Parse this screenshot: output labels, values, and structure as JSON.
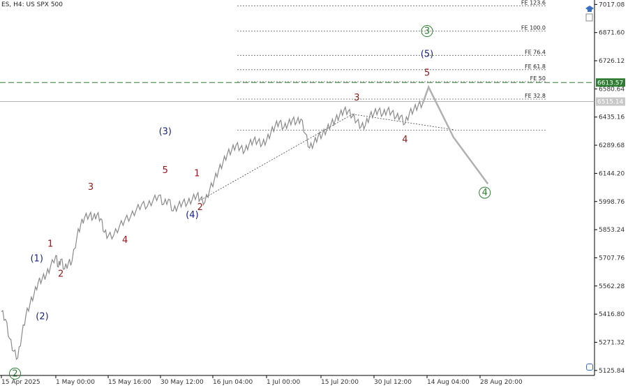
{
  "symbol": "ES, H4:  US SPX 500",
  "colors": {
    "price_line": "#8a8a8a",
    "projection": "#b0b0b0",
    "current_price_bg": "#c8c8c8",
    "resistance_line": "#2e7d32",
    "resistance_bg": "#2e7d32",
    "minor_wave": "#8b1a1a",
    "intermediate_wave": "#1a237e",
    "primary_wave": "#2e7d32",
    "fib_line": "#666666"
  },
  "chart_data": {
    "type": "line",
    "y_axis_ticks": [
      "7017.08",
      "6871.60",
      "6726.12",
      "6580.64",
      "6435.16",
      "6289.68",
      "6144.20",
      "5998.76",
      "5853.24",
      "5707.76",
      "5562.28",
      "5416.80",
      "5271.32",
      "5125.84"
    ],
    "x_axis_ticks": [
      "15 Apr 2025",
      "1 May 00:00",
      "15 May 16:00",
      "30 May 12:00",
      "16 Jun 04:00",
      "1 Jul 00:00",
      "15 Jul 20:00",
      "30 Jul 12:00",
      "14 Aug 04:00",
      "28 Aug 20:00"
    ],
    "ylim": [
      5100,
      7040
    ],
    "price_series": [
      [
        0,
        5430
      ],
      [
        3,
        5390
      ],
      [
        6,
        5290
      ],
      [
        9,
        5225
      ],
      [
        12,
        5190
      ],
      [
        15,
        5310
      ],
      [
        18,
        5410
      ],
      [
        21,
        5470
      ],
      [
        24,
        5520
      ],
      [
        27,
        5580
      ],
      [
        30,
        5600
      ],
      [
        33,
        5620
      ],
      [
        36,
        5660
      ],
      [
        40,
        5720
      ],
      [
        42,
        5660
      ],
      [
        44,
        5700
      ],
      [
        47,
        5650
      ],
      [
        50,
        5680
      ],
      [
        53,
        5690
      ],
      [
        57,
        5820
      ],
      [
        60,
        5880
      ],
      [
        63,
        5915
      ],
      [
        67,
        5930
      ],
      [
        70,
        5915
      ],
      [
        73,
        5930
      ],
      [
        76,
        5910
      ],
      [
        79,
        5840
      ],
      [
        82,
        5820
      ],
      [
        85,
        5825
      ],
      [
        88,
        5870
      ],
      [
        91,
        5905
      ],
      [
        94,
        5920
      ],
      [
        97,
        5955
      ],
      [
        100,
        5985
      ],
      [
        103,
        5975
      ],
      [
        106,
        6005
      ],
      [
        109,
        6030
      ],
      [
        112,
        5985
      ],
      [
        115,
        6010
      ],
      [
        118,
        5950
      ],
      [
        121,
        5975
      ],
      [
        124,
        5995
      ],
      [
        127,
        5990
      ],
      [
        130,
        6010
      ],
      [
        133,
        6035
      ],
      [
        135,
        6010
      ],
      [
        138,
        5995
      ],
      [
        141,
        6060
      ],
      [
        144,
        6110
      ],
      [
        147,
        6160
      ],
      [
        150,
        6200
      ],
      [
        153,
        6245
      ],
      [
        156,
        6265
      ],
      [
        159,
        6290
      ],
      [
        162,
        6275
      ],
      [
        165,
        6260
      ],
      [
        168,
        6295
      ],
      [
        171,
        6315
      ],
      [
        174,
        6310
      ],
      [
        177,
        6295
      ],
      [
        180,
        6315
      ],
      [
        183,
        6355
      ],
      [
        186,
        6390
      ],
      [
        189,
        6410
      ],
      [
        192,
        6380
      ],
      [
        195,
        6400
      ],
      [
        198,
        6420
      ],
      [
        201,
        6410
      ],
      [
        204,
        6425
      ],
      [
        207,
        6350
      ],
      [
        210,
        6275
      ],
      [
        213,
        6300
      ],
      [
        216,
        6335
      ],
      [
        219,
        6345
      ],
      [
        222,
        6370
      ],
      [
        225,
        6400
      ],
      [
        228,
        6420
      ],
      [
        231,
        6445
      ],
      [
        234,
        6470
      ],
      [
        237,
        6465
      ],
      [
        240,
        6440
      ],
      [
        243,
        6415
      ],
      [
        246,
        6385
      ],
      [
        249,
        6395
      ],
      [
        252,
        6440
      ],
      [
        255,
        6455
      ],
      [
        258,
        6470
      ],
      [
        261,
        6450
      ],
      [
        264,
        6470
      ],
      [
        267,
        6460
      ],
      [
        270,
        6435
      ],
      [
        273,
        6440
      ],
      [
        276,
        6400
      ],
      [
        279,
        6455
      ],
      [
        282,
        6475
      ],
      [
        285,
        6495
      ],
      [
        288,
        6505
      ]
    ],
    "projection_path": [
      [
        288,
        6505
      ],
      [
        292,
        6590
      ],
      [
        308,
        6330
      ],
      [
        330,
        6090
      ]
    ],
    "current_price": "6515.14",
    "resistance_price": "6613.57",
    "fib_levels": [
      {
        "label": "FE 123.6",
        "price": 7010
      },
      {
        "label": "FE 100.0",
        "price": 6880
      },
      {
        "label": "FE 76.4",
        "price": 6754
      },
      {
        "label": "FE 61.8",
        "price": 6680
      },
      {
        "label": "FE 50",
        "price": 6618
      },
      {
        "label": "FE 32.8",
        "price": 6528
      }
    ],
    "fib_base_level": 6368,
    "fib_base_x": [
      134,
      308
    ],
    "trendline": [
      [
        134,
        6000
      ],
      [
        240,
        6450
      ]
    ],
    "trendline_lower": [
      [
        240,
        6450
      ],
      [
        308,
        6370
      ]
    ],
    "wave_labels": [
      {
        "text": "2",
        "x": 10,
        "price": 5095,
        "degree": "primary",
        "circled": true
      },
      {
        "text": "(1)",
        "x": 26,
        "price": 5690,
        "degree": "intermediate"
      },
      {
        "text": "(2)",
        "x": 30,
        "price": 5390,
        "degree": "intermediate"
      },
      {
        "text": "1",
        "x": 36,
        "price": 5765,
        "degree": "minor"
      },
      {
        "text": "2",
        "x": 44,
        "price": 5610,
        "degree": "minor"
      },
      {
        "text": "3",
        "x": 68,
        "price": 6060,
        "degree": "minor"
      },
      {
        "text": "4",
        "x": 91,
        "price": 5785,
        "degree": "minor"
      },
      {
        "text": "(3)",
        "x": 113,
        "price": 6345,
        "degree": "intermediate"
      },
      {
        "text": "5",
        "x": 113,
        "price": 6145,
        "degree": "minor"
      },
      {
        "text": "1",
        "x": 133,
        "price": 6130,
        "degree": "minor"
      },
      {
        "text": "2",
        "x": 135,
        "price": 5955,
        "degree": "minor"
      },
      {
        "text": "(4)",
        "x": 130,
        "price": 5915,
        "degree": "intermediate"
      },
      {
        "text": "3",
        "x": 243,
        "price": 6520,
        "degree": "minor"
      },
      {
        "text": "4",
        "x": 276,
        "price": 6305,
        "degree": "minor"
      },
      {
        "text": "5",
        "x": 291,
        "price": 6648,
        "degree": "minor"
      },
      {
        "text": "(5)",
        "x": 291,
        "price": 6746,
        "degree": "intermediate"
      },
      {
        "text": "3",
        "x": 291,
        "price": 6865,
        "degree": "primary",
        "circled": true
      },
      {
        "text": "4",
        "x": 328,
        "price": 6030,
        "degree": "primary",
        "circled": true
      }
    ]
  }
}
